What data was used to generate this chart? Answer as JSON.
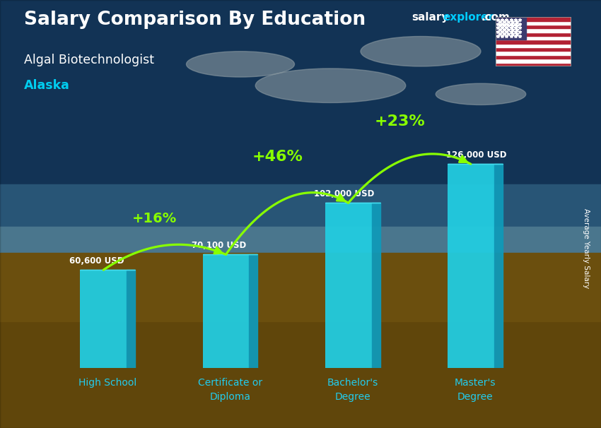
{
  "title_main": "Salary Comparison By Education",
  "subtitle1": "Algal Biotechnologist",
  "subtitle2": "Alaska",
  "categories": [
    "High School",
    "Certificate or\nDiploma",
    "Bachelor's\nDegree",
    "Master's\nDegree"
  ],
  "values": [
    60600,
    70100,
    102000,
    126000
  ],
  "value_labels": [
    "60,600 USD",
    "70,100 USD",
    "102,000 USD",
    "126,000 USD"
  ],
  "pct_labels": [
    "+16%",
    "+46%",
    "+23%"
  ],
  "bar_face_color": "#22cce0",
  "bar_side_color": "#1099b8",
  "bar_top_color": "#44ddf0",
  "title_color": "#ffffff",
  "subtitle1_color": "#ffffff",
  "subtitle2_color": "#00ccee",
  "value_label_color": "#ffffff",
  "pct_color": "#88ff00",
  "arrow_color": "#88ff00",
  "ylabel": "Average Yearly Salary",
  "ylim": [
    0,
    148000
  ],
  "salaryexplorer_white": "#ffffff",
  "salaryexplorer_cyan": "#00ccff",
  "xtick_color": "#22ccee"
}
